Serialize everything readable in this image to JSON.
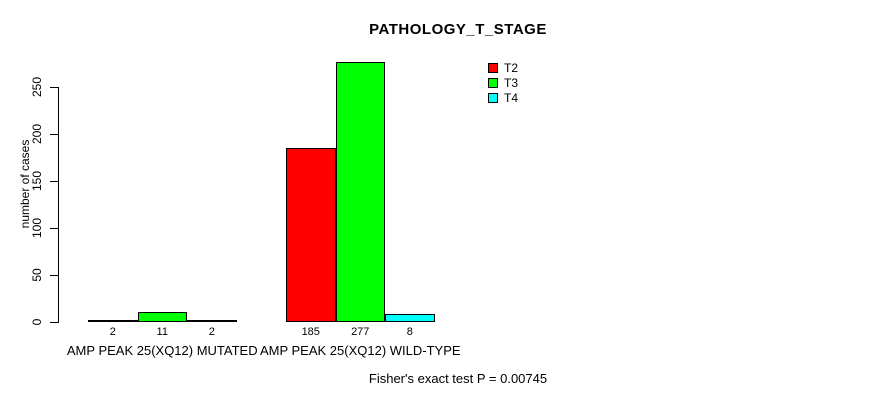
{
  "chart_data": {
    "type": "bar",
    "title": "PATHOLOGY_T_STAGE",
    "xlabel": "",
    "ylabel": "number of cases",
    "ylim": [
      0,
      250
    ],
    "yticks": [
      0,
      50,
      100,
      150,
      200,
      250
    ],
    "grid": false,
    "legend_position": "top-right",
    "categories": [
      "AMP PEAK 25(XQ12) MUTATED",
      "AMP PEAK 25(XQ12) WILD-TYPE"
    ],
    "series": [
      {
        "name": "T2",
        "color": "#FF0000",
        "values": [
          2,
          185
        ]
      },
      {
        "name": "T3",
        "color": "#00FF00",
        "values": [
          11,
          277
        ]
      },
      {
        "name": "T4",
        "color": "#00FFFF",
        "values": [
          2,
          8
        ]
      }
    ],
    "bar_value_labels": [
      [
        2,
        11,
        2
      ],
      [
        185,
        277,
        8
      ]
    ],
    "annotation": "Fisher's exact test P = 0.00745",
    "colors": {
      "axis": "#000000",
      "bar_border": "#000000",
      "background": "#FFFFFF"
    }
  }
}
